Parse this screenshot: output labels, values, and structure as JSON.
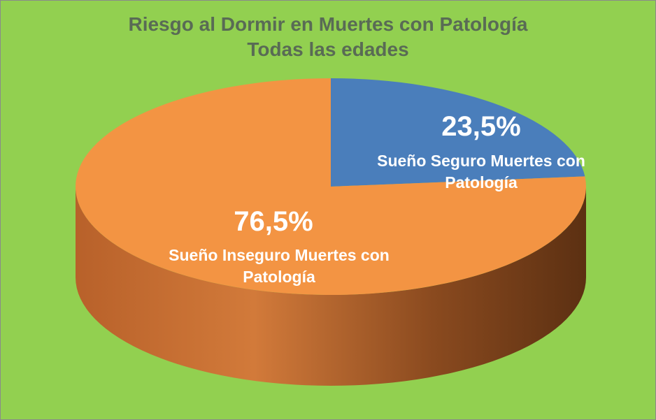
{
  "chart_data": {
    "type": "pie",
    "title": "Riesgo al Dormir en Muertes con Patología",
    "subtitle": "Todas las edades",
    "categories": [
      "Sueño Seguro Muertes con Patología",
      "Sueño Inseguro Muertes con Patología"
    ],
    "values": [
      23.5,
      76.5
    ],
    "value_labels": [
      "23,5%",
      "76,5%"
    ],
    "colors": [
      "#4a7ebb",
      "#f39443"
    ],
    "background": "#92d050"
  }
}
